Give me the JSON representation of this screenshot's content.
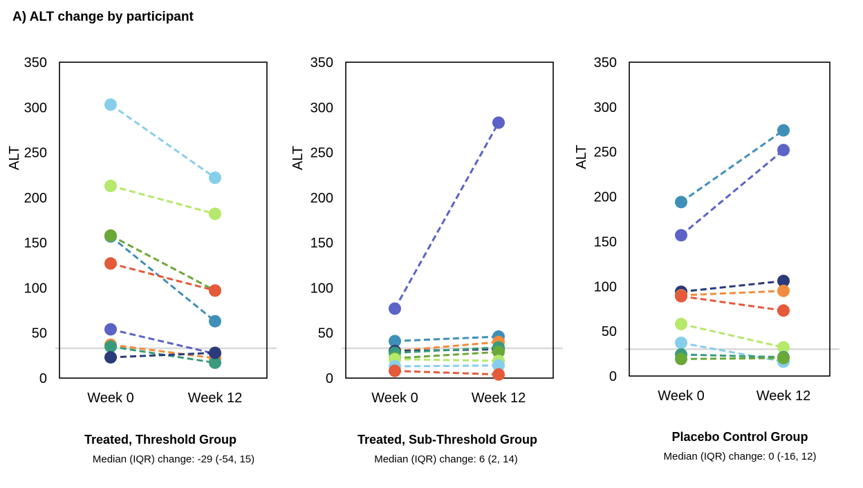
{
  "figure_title": "A) ALT change by participant",
  "chart_data": [
    {
      "type": "line",
      "title": "Treated, Threshold Group",
      "subtitle": "Median (IQR) change: -29 (-54, 15)",
      "ylabel": "ALT",
      "categories": [
        "Week 0",
        "Week 12"
      ],
      "ylim": [
        0,
        350
      ],
      "yticks": [
        "0",
        "50",
        "100",
        "150",
        "200",
        "250",
        "300",
        "350"
      ],
      "reference_line": 33,
      "series": [
        {
          "color": "#87ceeb",
          "values": [
            303,
            222
          ]
        },
        {
          "color": "#b5e86b",
          "values": [
            213,
            182
          ]
        },
        {
          "color": "#3f8fb8",
          "values": [
            157,
            63
          ]
        },
        {
          "color": "#6aa837",
          "values": [
            158,
            97
          ]
        },
        {
          "color": "#e45a3a",
          "values": [
            127,
            97
          ]
        },
        {
          "color": "#5b63c7",
          "values": [
            54,
            27
          ]
        },
        {
          "color": "#f28c3c",
          "values": [
            37,
            22
          ]
        },
        {
          "color": "#3a9a7c",
          "values": [
            35,
            17
          ]
        },
        {
          "color": "#2a3a7a",
          "values": [
            23,
            28
          ]
        }
      ]
    },
    {
      "type": "line",
      "title": "Treated, Sub-Threshold Group",
      "subtitle": "Median (IQR) change: 6 (2, 14)",
      "ylabel": "ALT",
      "categories": [
        "Week 0",
        "Week 12"
      ],
      "ylim": [
        0,
        350
      ],
      "yticks": [
        "0",
        "50",
        "100",
        "150",
        "200",
        "250",
        "300",
        "350"
      ],
      "reference_line": 33,
      "series": [
        {
          "color": "#5b63c7",
          "values": [
            77,
            283
          ]
        },
        {
          "color": "#3f8fb8",
          "values": [
            41,
            46
          ]
        },
        {
          "color": "#f28c3c",
          "values": [
            30,
            40
          ]
        },
        {
          "color": "#2a3a7a",
          "values": [
            30,
            32
          ]
        },
        {
          "color": "#3a9a7c",
          "values": [
            28,
            34
          ]
        },
        {
          "color": "#6aa837",
          "values": [
            22,
            29
          ]
        },
        {
          "color": "#b5e86b",
          "values": [
            21,
            19
          ]
        },
        {
          "color": "#87ceeb",
          "values": [
            13,
            14
          ]
        },
        {
          "color": "#e45a3a",
          "values": [
            8,
            4
          ]
        }
      ]
    },
    {
      "type": "line",
      "title": "Placebo Control Group",
      "subtitle": "Median (IQR) change: 0 (-16, 12)",
      "ylabel": "ALT",
      "categories": [
        "Week 0",
        "Week 12"
      ],
      "ylim": [
        0,
        350
      ],
      "yticks": [
        "0",
        "50",
        "100",
        "150",
        "200",
        "250",
        "300",
        "350"
      ],
      "reference_line": 30,
      "series": [
        {
          "color": "#3f8fb8",
          "values": [
            194,
            274
          ]
        },
        {
          "color": "#5b63c7",
          "values": [
            157,
            252
          ]
        },
        {
          "color": "#2a3a7a",
          "values": [
            94,
            106
          ]
        },
        {
          "color": "#f28c3c",
          "values": [
            90,
            95
          ]
        },
        {
          "color": "#e45a3a",
          "values": [
            89,
            73
          ]
        },
        {
          "color": "#b5e86b",
          "values": [
            58,
            32
          ]
        },
        {
          "color": "#87ceeb",
          "values": [
            37,
            16
          ]
        },
        {
          "color": "#3a9a7c",
          "values": [
            24,
            21
          ]
        },
        {
          "color": "#6aa837",
          "values": [
            19,
            20
          ]
        }
      ]
    }
  ]
}
